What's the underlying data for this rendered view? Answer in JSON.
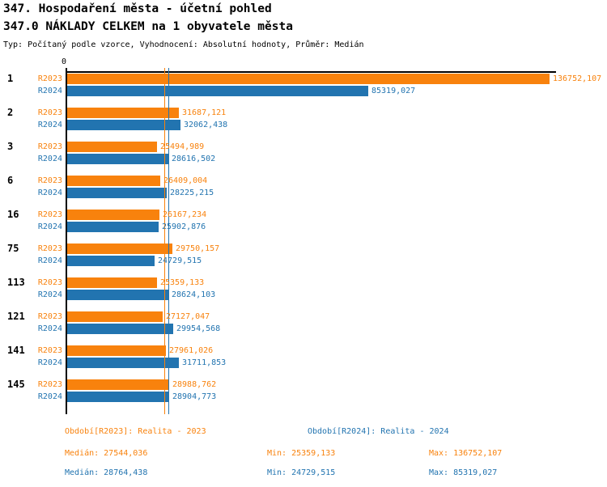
{
  "header": {
    "title_line1": "347. Hospodaření města - účetní pohled",
    "title_line2": "347.0 NÁKLADY CELKEM na 1 obyvatele města",
    "subtitle": "Typ: Počítaný podle vzorce, Vyhodnocení: Absolutní hodnoty, Průměr: Medián"
  },
  "colors": {
    "series_r2023": "#F8820D",
    "series_r2024": "#2274B0",
    "axis": "#000000",
    "background": "#FFFFFF"
  },
  "chart_data": {
    "type": "bar",
    "orientation": "horizontal",
    "title": "347.0 NÁKLADY CELKEM na 1 obyvatele města",
    "value_axis": {
      "zero_label": "0",
      "min": 0,
      "max": 136752.107
    },
    "grid": false,
    "legend_position": "bottom",
    "categories": [
      "1",
      "2",
      "3",
      "6",
      "16",
      "75",
      "113",
      "121",
      "141",
      "145"
    ],
    "series": [
      {
        "name": "R2023",
        "color": "#F8820D",
        "median": 27544.036,
        "values": [
          136752.107,
          31687.121,
          25494.989,
          26409.004,
          26167.234,
          29750.157,
          25359.133,
          27127.047,
          27961.026,
          28988.762
        ],
        "value_labels": [
          "136752,107",
          "31687,121",
          "25494,989",
          "26409,004",
          "26167,234",
          "29750,157",
          "25359,133",
          "27127,047",
          "27961,026",
          "28988,762"
        ]
      },
      {
        "name": "R2024",
        "color": "#2274B0",
        "median": 28764.438,
        "values": [
          85319.027,
          32062.438,
          28616.502,
          28225.215,
          25902.876,
          24729.515,
          28624.103,
          29954.568,
          31711.853,
          28904.773
        ],
        "value_labels": [
          "85319,027",
          "32062,438",
          "28616,502",
          "28225,215",
          "25902,876",
          "24729,515",
          "28624,103",
          "29954,568",
          "31711,853",
          "28904,773"
        ]
      }
    ]
  },
  "footer": {
    "legend": [
      {
        "series": "R2023",
        "label": "Období[R2023]: Realita - 2023"
      },
      {
        "series": "R2024",
        "label": "Období[R2024]: Realita - 2024"
      }
    ],
    "stats": [
      {
        "series": "R2023",
        "median": "Medián: 27544,036",
        "min": "Min: 25359,133",
        "max": "Max: 136752,107"
      },
      {
        "series": "R2024",
        "median": "Medián: 28764,438",
        "min": "Min: 24729,515",
        "max": "Max: 85319,027"
      }
    ]
  }
}
